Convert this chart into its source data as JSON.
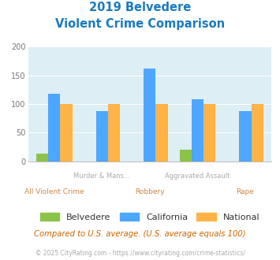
{
  "title_line1": "2019 Belvedere",
  "title_line2": "Violent Crime Comparison",
  "title_color": "#1a7abf",
  "categories": [
    "All Violent Crime",
    "Murder & Mans...",
    "Robbery",
    "Aggravated Assault",
    "Rape"
  ],
  "cat_upper": [
    "",
    "Murder & Mans...",
    "",
    "Aggravated Assault",
    ""
  ],
  "cat_lower": [
    "All Violent Crime",
    "",
    "Robbery",
    "",
    "Rape"
  ],
  "belvedere": [
    13,
    0,
    0,
    20,
    0
  ],
  "california": [
    118,
    87,
    162,
    108,
    87
  ],
  "national": [
    100,
    100,
    100,
    100,
    100
  ],
  "belvedere_color": "#8bc34a",
  "california_color": "#4da6ff",
  "national_color": "#ffb347",
  "ylim": [
    0,
    200
  ],
  "yticks": [
    0,
    50,
    100,
    150,
    200
  ],
  "background_color": "#ddeef5",
  "legend_labels": [
    "Belvedere",
    "California",
    "National"
  ],
  "footnote1": "Compared to U.S. average. (U.S. average equals 100)",
  "footnote2": "© 2025 CityRating.com - https://www.cityrating.com/crime-statistics/",
  "footnote1_color": "#cc6600",
  "footnote2_color": "#aaaaaa",
  "footnote2_link_color": "#4da6ff"
}
